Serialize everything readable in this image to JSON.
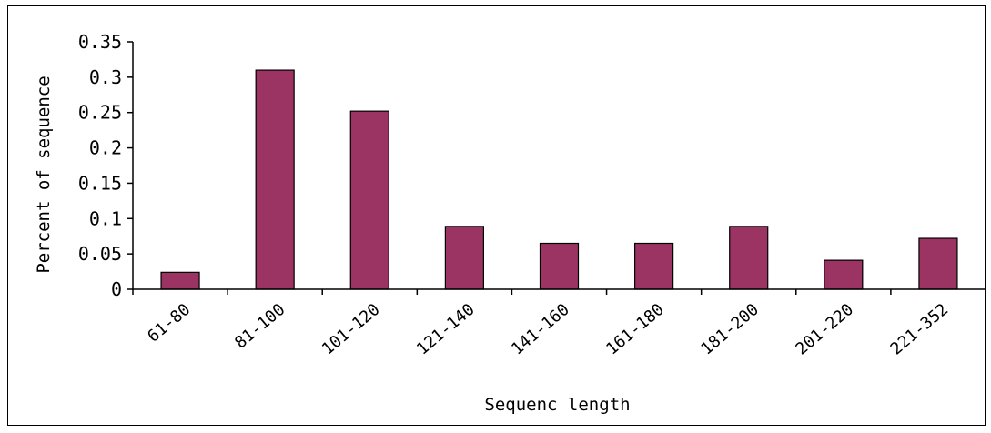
{
  "chart_data": {
    "type": "bar",
    "categories": [
      "61-80",
      "81-100",
      "101-120",
      "121-140",
      "141-160",
      "161-180",
      "181-200",
      "201-220",
      "221-352"
    ],
    "values": [
      0.024,
      0.31,
      0.252,
      0.089,
      0.065,
      0.065,
      0.089,
      0.041,
      0.072
    ],
    "xlabel": "Sequenc length",
    "ylabel": "Percent of sequence",
    "ylim": [
      0,
      0.35
    ],
    "yticks": [
      0,
      0.05,
      0.1,
      0.15,
      0.2,
      0.25,
      0.3,
      0.35
    ],
    "ytick_labels": [
      "0",
      "0.05",
      "0.1",
      "0.15",
      "0.2",
      "0.25",
      "0.3",
      "0.35"
    ],
    "bar_color": "#9b3363",
    "grid": false,
    "legend": "none"
  }
}
